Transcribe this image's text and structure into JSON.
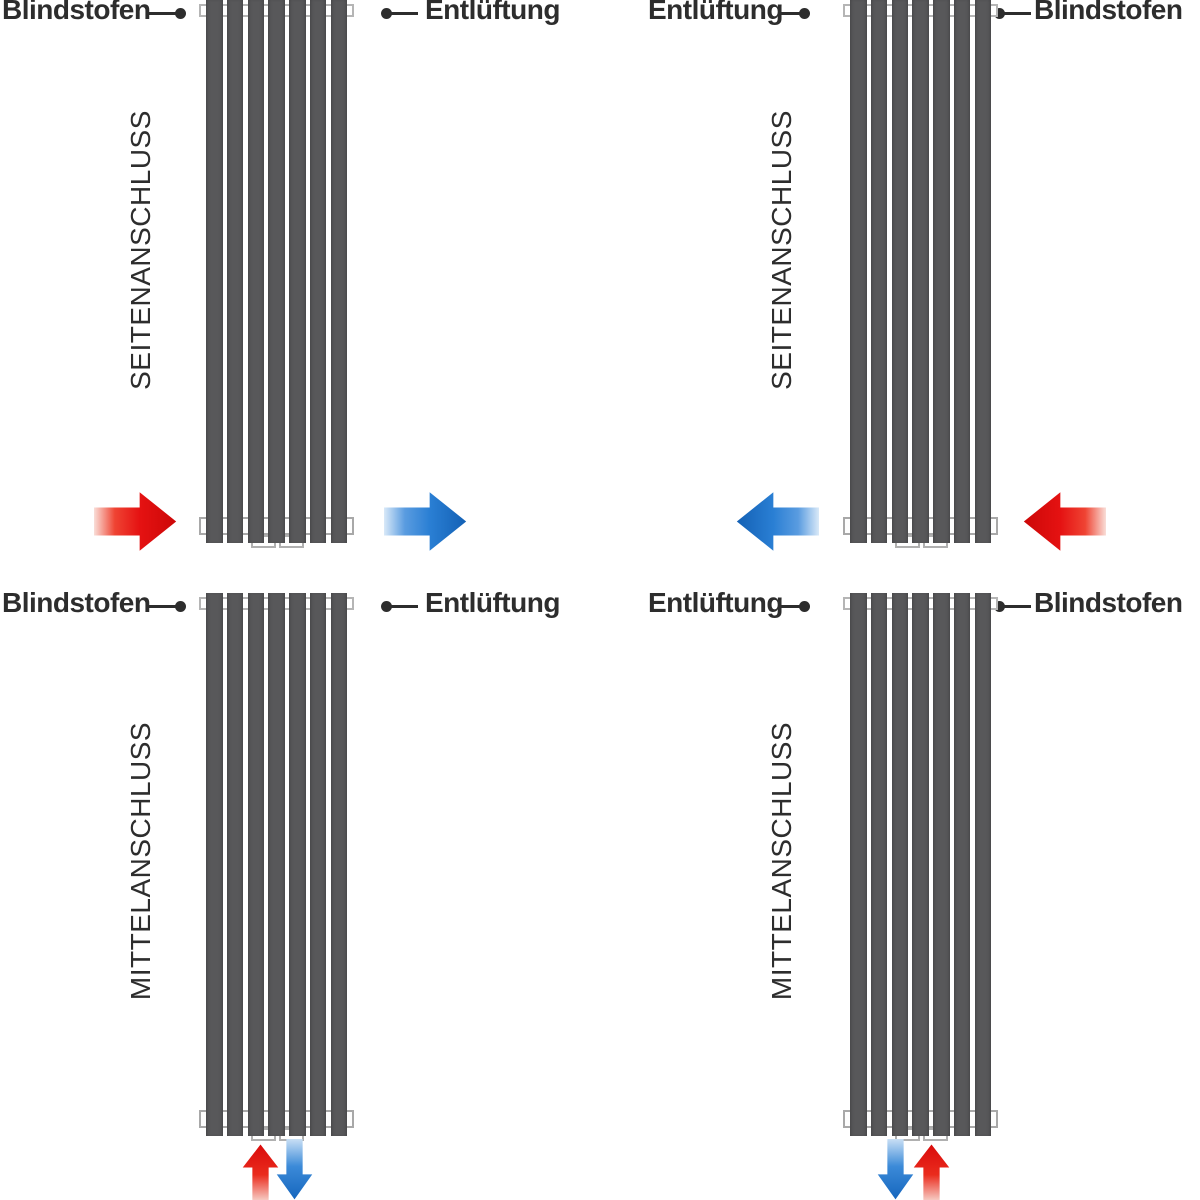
{
  "diagram": {
    "title_implied": "Radiator connection variants",
    "background_color": "#ffffff",
    "radiator_fin_color": "#58585a",
    "text_color": "#2d2d2d",
    "flow_colors": {
      "supply_red": "#e51212",
      "return_blue": "#2a7fd4"
    },
    "quadrants": [
      {
        "position": "top-left",
        "connection_label": "SEITENANSCHLUSS",
        "top_left_label": "Blindstofen",
        "top_right_label": "Entlüftung",
        "arrows": [
          {
            "icon": "red-flow-arrow-right-icon",
            "color": "red",
            "direction": "right",
            "location": "left-of-radiator-bottom"
          },
          {
            "icon": "blue-flow-arrow-right-icon",
            "color": "blue",
            "direction": "right",
            "location": "right-of-radiator-bottom"
          }
        ]
      },
      {
        "position": "top-right",
        "connection_label": "SEITENANSCHLUSS",
        "top_left_label": "Entlüftung",
        "top_right_label": "Blindstofen",
        "arrows": [
          {
            "icon": "blue-flow-arrow-left-icon",
            "color": "blue",
            "direction": "left",
            "location": "left-of-radiator-bottom"
          },
          {
            "icon": "red-flow-arrow-left-icon",
            "color": "red",
            "direction": "left",
            "location": "right-of-radiator-bottom"
          }
        ]
      },
      {
        "position": "bottom-left",
        "connection_label": "MITTELANSCHLUSS",
        "top_left_label": "Blindstofen",
        "top_right_label": "Entlüftung",
        "arrows": [
          {
            "icon": "red-flow-arrow-up-icon",
            "color": "red",
            "direction": "up",
            "location": "below-radiator-center-left"
          },
          {
            "icon": "blue-flow-arrow-down-icon",
            "color": "blue",
            "direction": "down",
            "location": "below-radiator-center-right"
          }
        ]
      },
      {
        "position": "bottom-right",
        "connection_label": "MITTELANSCHLUSS",
        "top_left_label": "Entlüftung",
        "top_right_label": "Blindstofen",
        "arrows": [
          {
            "icon": "blue-flow-arrow-down-icon",
            "color": "blue",
            "direction": "down",
            "location": "below-radiator-center-left"
          },
          {
            "icon": "red-flow-arrow-up-icon",
            "color": "red",
            "direction": "up",
            "location": "below-radiator-center-right"
          }
        ]
      }
    ]
  }
}
